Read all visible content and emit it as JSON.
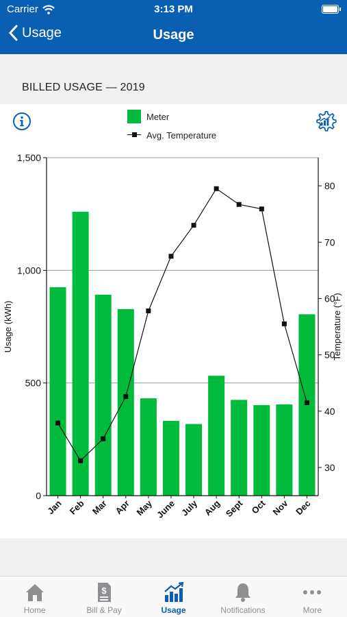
{
  "status_bar": {
    "carrier": "Carrier",
    "time": "3:13 PM"
  },
  "nav": {
    "back_label": "Usage",
    "title": "Usage"
  },
  "section": {
    "title": "BILLED USAGE — 2019"
  },
  "legend": {
    "meter": "Meter",
    "temperature": "Avg. Temperature"
  },
  "colors": {
    "header": "#0b5fb3",
    "bars": "#00bb3c",
    "active_tab": "#0b5fb3"
  },
  "chart_data": {
    "type": "bar",
    "categories": [
      "Jan",
      "Feb",
      "Mar",
      "Apr",
      "May",
      "June",
      "July",
      "Aug",
      "Sept",
      "Oct",
      "Nov",
      "Dec"
    ],
    "series": [
      {
        "name": "Meter",
        "type": "bar",
        "axis": "left",
        "values": [
          925,
          1260,
          892,
          828,
          432,
          332,
          318,
          532,
          425,
          402,
          405,
          805
        ]
      },
      {
        "name": "Avg. Temperature",
        "type": "line",
        "axis": "right",
        "values": [
          37.9,
          31.2,
          35.1,
          42.6,
          57.8,
          67.5,
          73.0,
          79.5,
          76.7,
          75.9,
          55.5,
          41.5
        ]
      }
    ],
    "ylabel": "Usage (kWh)",
    "y2label": "Temperature (°F)",
    "ylim": [
      0,
      1500
    ],
    "y2lim": [
      25,
      85
    ],
    "yticks": [
      0,
      500,
      1000,
      1500
    ],
    "ytick_labels": [
      "0",
      "500",
      "1,000",
      "1,500"
    ],
    "y2ticks": [
      30,
      40,
      50,
      60,
      70,
      80
    ],
    "grid": true,
    "legend_position": "top-center"
  },
  "tabs": [
    {
      "label": "Home",
      "icon": "home-icon",
      "active": false
    },
    {
      "label": "Bill & Pay",
      "icon": "bill-icon",
      "active": false
    },
    {
      "label": "Usage",
      "icon": "usage-chart-icon",
      "active": true
    },
    {
      "label": "Notifications",
      "icon": "bell-icon",
      "active": false
    },
    {
      "label": "More",
      "icon": "more-icon",
      "active": false
    }
  ]
}
